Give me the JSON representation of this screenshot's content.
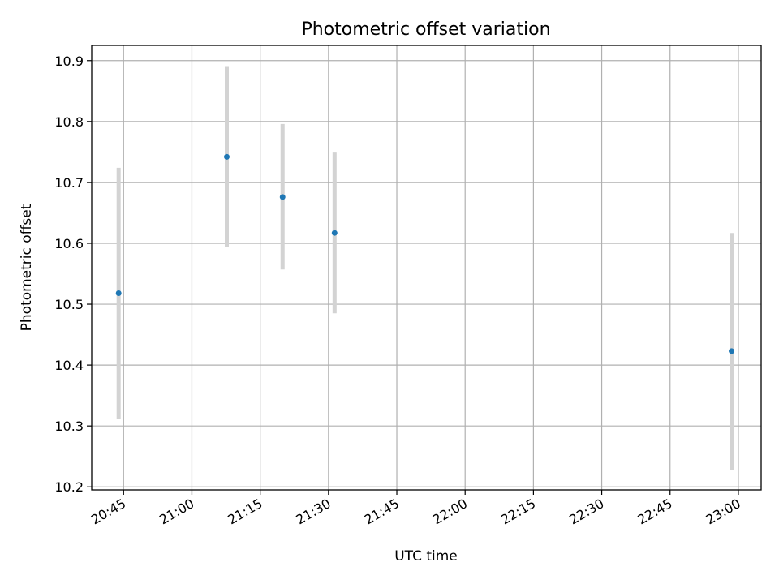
{
  "chart_data": {
    "type": "scatter",
    "title": "Photometric offset variation",
    "xlabel": "UTC time",
    "ylabel": "Photometric offset",
    "x_ticks": [
      "20:45",
      "21:00",
      "21:15",
      "21:30",
      "21:45",
      "22:00",
      "22:15",
      "22:30",
      "22:45",
      "23:00"
    ],
    "y_ticks": [
      "10.2",
      "10.3",
      "10.4",
      "10.5",
      "10.6",
      "10.7",
      "10.8",
      "10.9"
    ],
    "xlim": [
      "20:38",
      "23:05"
    ],
    "ylim": [
      10.195,
      10.925
    ],
    "grid": true,
    "point_color": "#1f77b4",
    "errorbar_color": "#d3d3d3",
    "points": [
      {
        "x": "20:43:55",
        "y": 10.518,
        "yerr_low": 10.312,
        "yerr_high": 10.724
      },
      {
        "x": "21:07:40",
        "y": 10.742,
        "yerr_low": 10.594,
        "yerr_high": 10.891
      },
      {
        "x": "21:19:55",
        "y": 10.676,
        "yerr_low": 10.557,
        "yerr_high": 10.796
      },
      {
        "x": "21:31:20",
        "y": 10.617,
        "yerr_low": 10.485,
        "yerr_high": 10.749
      },
      {
        "x": "22:58:30",
        "y": 10.423,
        "yerr_low": 10.228,
        "yerr_high": 10.617
      }
    ]
  }
}
